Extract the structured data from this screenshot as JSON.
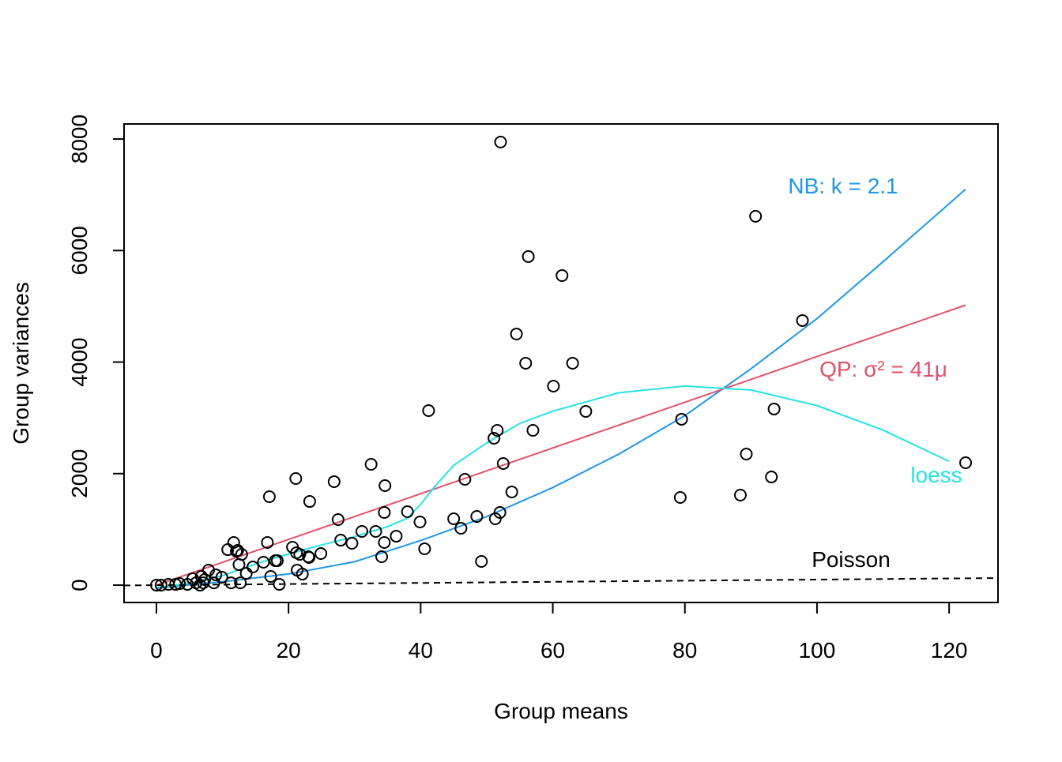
{
  "chart_data": {
    "type": "scatter",
    "x_label": "Group means",
    "y_label": "Group variances",
    "xlim": [
      -4.9,
      127.4
    ],
    "ylim": [
      -311,
      8270
    ],
    "xticks": [
      0,
      20,
      40,
      60,
      80,
      100,
      120
    ],
    "yticks": [
      0,
      2000,
      4000,
      6000,
      8000
    ],
    "point_color": "#000000",
    "x": [
      122.5,
      90.7,
      97.8,
      93.5,
      89.3,
      93.1,
      88.4,
      79.5,
      79.3,
      52.1,
      56.3,
      61.4,
      54.5,
      55.9,
      63.0,
      60.1,
      65.0,
      51.6,
      57.0,
      51.1,
      52.5,
      46.7,
      53.8,
      52.0,
      51.3,
      48.5,
      45.0,
      46.1,
      49.2,
      41.2,
      39.9,
      40.6,
      38.0,
      32.5,
      34.6,
      34.5,
      33.2,
      31.1,
      36.3,
      34.5,
      34.1,
      29.6,
      27.9,
      27.5,
      26.9,
      21.1,
      23.2,
      17.1,
      16.8,
      20.6,
      21.2,
      21.7,
      23.0,
      23.1,
      24.9,
      18.0,
      18.3,
      16.2,
      17.3,
      18.6,
      21.3,
      22.1,
      14.6,
      13.6,
      12.9,
      11.7,
      10.8,
      12.1,
      12.3,
      12.5,
      12.7,
      11.3,
      9.9,
      9.0,
      7.9,
      6.8,
      7.1,
      6.6,
      6.0,
      5.5,
      4.7,
      3.5,
      2.9,
      1.8,
      0.7,
      0.0,
      7.3,
      8.7
    ],
    "y": [
      2195,
      6615,
      4745,
      3159,
      2351,
      1940,
      1615,
      2975,
      1572,
      7946,
      5892,
      5552,
      4504,
      3980,
      3980,
      3569,
      3116,
      2776,
      2776,
      2635,
      2181,
      1898,
      1671,
      1303,
      1190,
      1232,
      1190,
      1020,
      425,
      3130,
      1133,
      652,
      1317,
      2167,
      1785,
      1303,
      963,
      963,
      878,
      765,
      510,
      751,
      807,
      1176,
      1856,
      1912,
      1501,
      1586,
      765,
      680,
      581,
      552,
      510,
      496,
      567,
      439,
      439,
      411,
      156,
      14,
      269,
      198,
      326,
      212,
      552,
      765,
      637,
      609,
      623,
      368,
      42,
      42,
      142,
      184,
      269,
      156,
      42,
      0,
      42,
      113,
      14,
      28,
      14,
      14,
      0,
      0,
      99,
      42
    ],
    "lines": [
      {
        "label": "NB: k = 2.1",
        "color": "#2297E6",
        "dash": false,
        "x": [
          0,
          10,
          20,
          30,
          40,
          50,
          60,
          70,
          80,
          90,
          100,
          110,
          122.5
        ],
        "y": [
          -50,
          60,
          200,
          420,
          800,
          1230,
          1750,
          2350,
          3040,
          3880,
          4780,
          5800,
          7100
        ]
      },
      {
        "label": "QP: σ² = 41μ",
        "color": "#DF536B",
        "dash": false,
        "x": [
          0,
          122.5
        ],
        "y": [
          0,
          5022
        ]
      },
      {
        "label": "loess",
        "color": "#28E2E5",
        "dash": false,
        "x": [
          0,
          5,
          10,
          15,
          20,
          25,
          30,
          35,
          38,
          40,
          42,
          45,
          50,
          55,
          60,
          70,
          80,
          90,
          100,
          110,
          120
        ],
        "y": [
          -40,
          30,
          170,
          380,
          560,
          720,
          870,
          1050,
          1200,
          1450,
          1750,
          2150,
          2550,
          2900,
          3120,
          3450,
          3570,
          3500,
          3220,
          2780,
          2220
        ]
      },
      {
        "label": "Poisson",
        "color": "#000000",
        "dash": true,
        "x": [
          -4.9,
          127.4
        ],
        "y": [
          -4.9,
          127.4
        ]
      }
    ]
  }
}
